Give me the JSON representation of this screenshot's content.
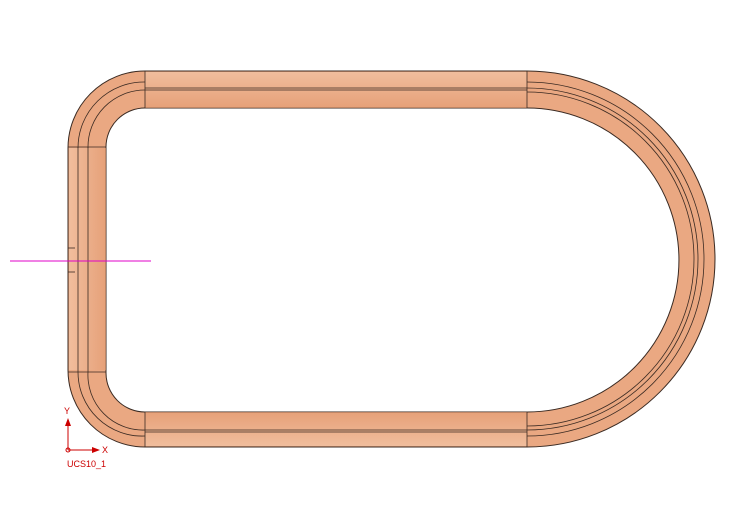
{
  "colors": {
    "background": "#ffffff",
    "part_fill": "#e9a67e",
    "part_fill_light": "#f3c3a2",
    "part_fill_dark": "#d38a62",
    "edge": "#3a2a22",
    "ucs": "#cc0000",
    "section_line": "#e000c8"
  },
  "ucs": {
    "name": "UCS10_1",
    "x_label": "X",
    "y_label": "Y"
  },
  "icons": [
    "ucs-triad-icon"
  ]
}
